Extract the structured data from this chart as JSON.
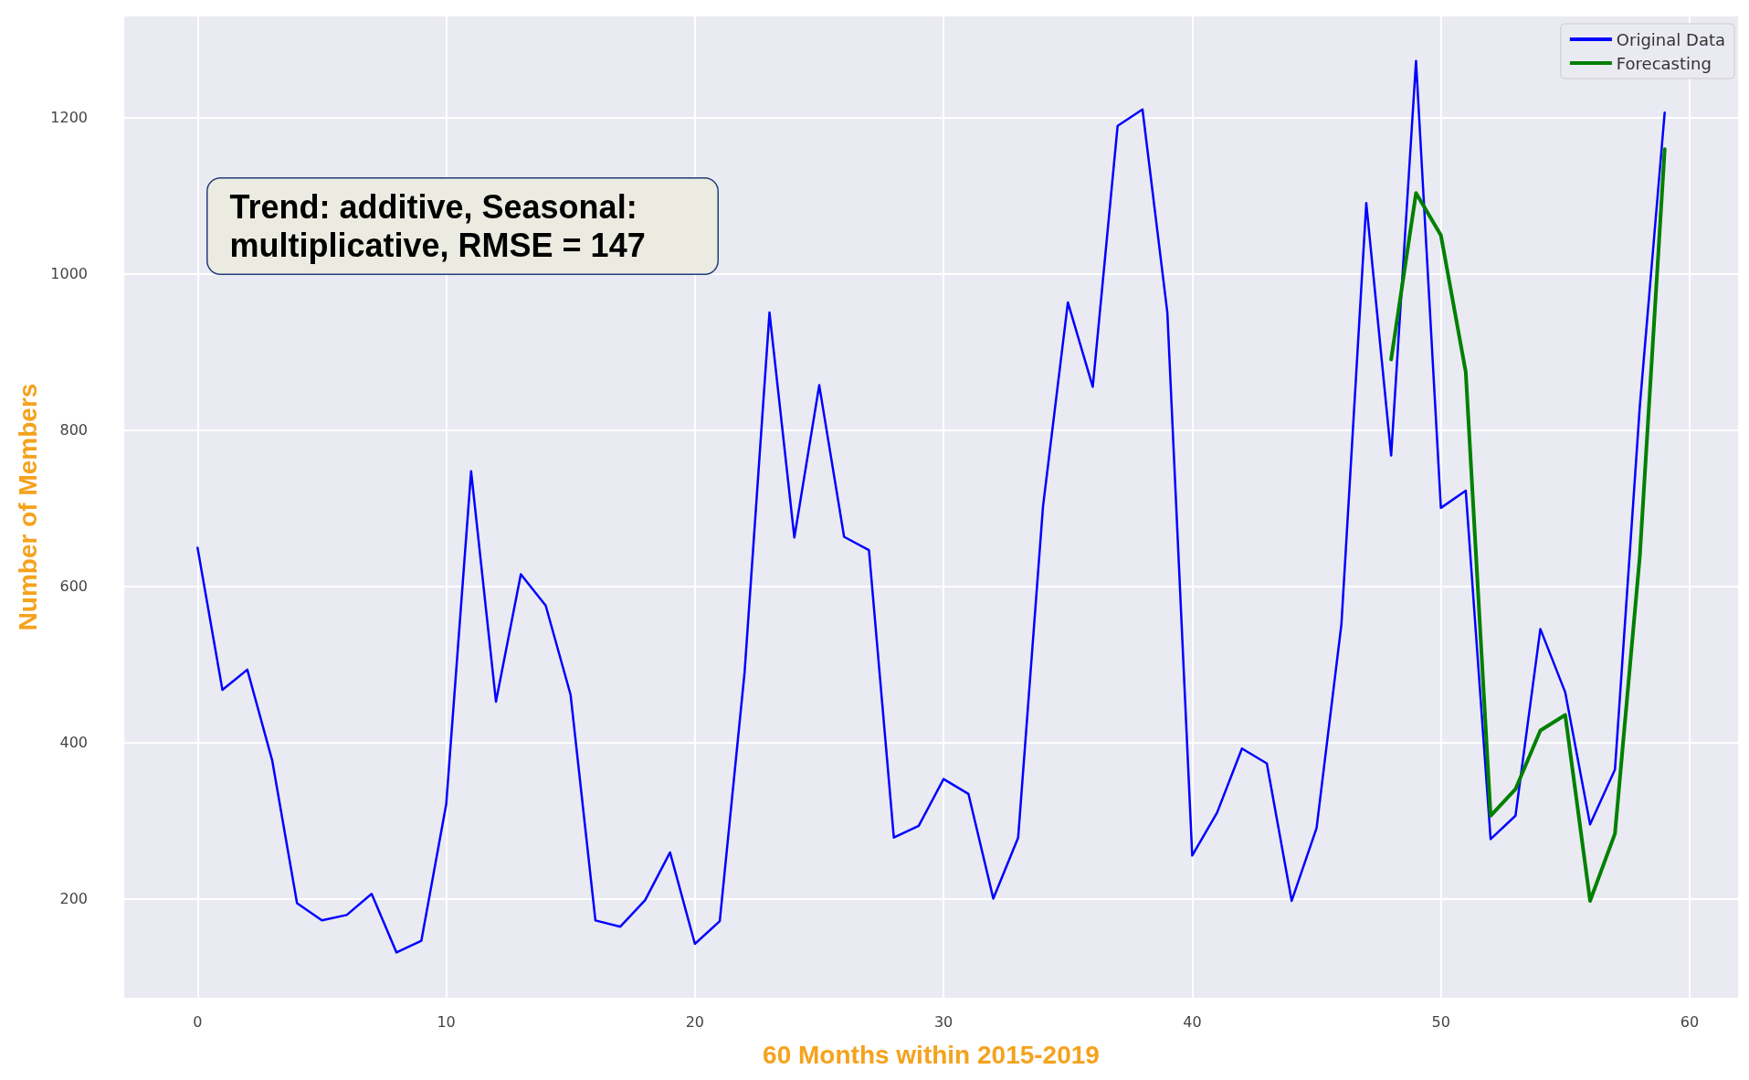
{
  "chart_data": {
    "type": "line",
    "xlabel": "60 Months within 2015-2019",
    "ylabel": "Number of Members",
    "annotations": [
      "Trend: additive, Seasonal: multiplicative, RMSE = 147"
    ],
    "xlim": [
      -2.95,
      61.95
    ],
    "xticks": [
      0,
      10,
      20,
      30,
      40,
      50,
      60
    ],
    "ylim": [
      73,
      1329
    ],
    "yticks": [
      200,
      400,
      600,
      800,
      1000,
      1200
    ],
    "grid": true,
    "legend": "top right",
    "line_style": "solid",
    "marker": "none",
    "series": [
      {
        "name": "Original Data",
        "color": "#0000ff",
        "x": [
          0,
          1,
          2,
          3,
          4,
          5,
          6,
          7,
          8,
          9,
          10,
          11,
          12,
          13,
          14,
          15,
          16,
          17,
          18,
          19,
          20,
          21,
          22,
          23,
          24,
          25,
          26,
          27,
          28,
          29,
          30,
          31,
          32,
          33,
          34,
          35,
          36,
          37,
          38,
          39,
          40,
          41,
          42,
          43,
          44,
          45,
          46,
          47,
          48,
          49,
          50,
          51,
          52,
          53,
          54,
          55,
          56,
          57,
          58,
          59
        ],
        "values": [
          649,
          467,
          493,
          377,
          194,
          172,
          179,
          206,
          131,
          146,
          321,
          747,
          452,
          615,
          575,
          461,
          172,
          164,
          198,
          259,
          142,
          171,
          490,
          950,
          662,
          857,
          663,
          646,
          278,
          293,
          353,
          334,
          200,
          278,
          702,
          963,
          855,
          1189,
          1210,
          950,
          255,
          310,
          392,
          373,
          197,
          290,
          551,
          1090,
          767,
          1272,
          700,
          722,
          276,
          306,
          545,
          464,
          295,
          365,
          830,
          1206
        ]
      },
      {
        "name": "Forecasting",
        "color": "#008000",
        "x": [
          48,
          49,
          50,
          51,
          52,
          53,
          54,
          55,
          56,
          57,
          58,
          59
        ],
        "values": [
          890,
          1103,
          1049,
          874,
          306,
          340,
          415,
          435,
          197,
          283,
          638,
          1159
        ]
      }
    ]
  }
}
